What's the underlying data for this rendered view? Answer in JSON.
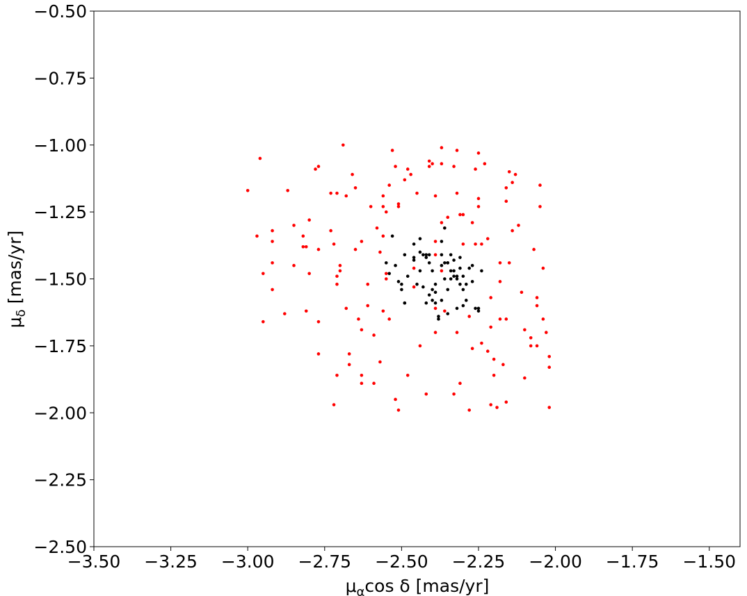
{
  "chart_data": {
    "type": "scatter",
    "xlabel": {
      "symbol": "μ",
      "subscript": "α",
      "rest": "cos δ [mas/yr]"
    },
    "ylabel": {
      "symbol": "μ",
      "subscript": "δ",
      "rest": " [mas/yr]"
    },
    "xlim": [
      -3.5,
      -1.4
    ],
    "ylim": [
      -2.5,
      -0.5
    ],
    "xticks": [
      {
        "value": -3.5,
        "label": "−3.50"
      },
      {
        "value": -3.25,
        "label": "−3.25"
      },
      {
        "value": -3.0,
        "label": "−3.00"
      },
      {
        "value": -2.75,
        "label": "−2.75"
      },
      {
        "value": -2.5,
        "label": "−2.50"
      },
      {
        "value": -2.25,
        "label": "−2.25"
      },
      {
        "value": -2.0,
        "label": "−2.00"
      },
      {
        "value": -1.75,
        "label": "−1.75"
      },
      {
        "value": -1.5,
        "label": "−1.50"
      }
    ],
    "yticks": [
      {
        "value": -2.5,
        "label": "−2.50"
      },
      {
        "value": -2.25,
        "label": "−2.25"
      },
      {
        "value": -2.0,
        "label": "−2.00"
      },
      {
        "value": -1.75,
        "label": "−1.75"
      },
      {
        "value": -1.5,
        "label": "−1.50"
      },
      {
        "value": -1.25,
        "label": "−1.25"
      },
      {
        "value": -1.0,
        "label": "−1.00"
      },
      {
        "value": -0.75,
        "label": "−0.75"
      },
      {
        "value": -0.5,
        "label": "−0.50"
      }
    ],
    "series": [
      {
        "color": "#ff0000",
        "x": [
          -3.0,
          -2.96,
          -2.97,
          -2.95,
          -2.95,
          -2.92,
          -2.92,
          -2.92,
          -2.92,
          -2.88,
          -2.87,
          -2.85,
          -2.85,
          -2.82,
          -2.82,
          -2.81,
          -2.81,
          -2.8,
          -2.8,
          -2.78,
          -2.77,
          -2.77,
          -2.77,
          -2.77,
          -2.73,
          -2.73,
          -2.71,
          -2.72,
          -2.72,
          -2.71,
          -2.71,
          -2.71,
          -2.7,
          -2.7,
          -2.69,
          -2.68,
          -2.68,
          -2.66,
          -2.67,
          -2.67,
          -2.65,
          -2.65,
          -2.64,
          -2.63,
          -2.63,
          -2.63,
          -2.63,
          -2.61,
          -2.61,
          -2.6,
          -2.59,
          -2.58,
          -2.57,
          -2.59,
          -2.57,
          -2.56,
          -2.56,
          -2.56,
          -2.56,
          -2.55,
          -2.55,
          -2.55,
          -2.54,
          -2.54,
          -2.53,
          -2.52,
          -2.52,
          -2.51,
          -2.51,
          -2.51,
          -2.49,
          -2.48,
          -2.48,
          -2.47,
          -2.46,
          -2.46,
          -2.45,
          -2.44,
          -2.42,
          -2.41,
          -2.41,
          -2.4,
          -2.39,
          -2.39,
          -2.39,
          -2.39,
          -2.37,
          -2.39,
          -2.37,
          -2.37,
          -2.37,
          -2.36,
          -2.36,
          -2.35,
          -2.33,
          -2.32,
          -2.33,
          -2.32,
          -2.32,
          -2.31,
          -2.31,
          -2.3,
          -2.3,
          -2.28,
          -2.28,
          -2.27,
          -2.27,
          -2.26,
          -2.26,
          -2.25,
          -2.25,
          -2.25,
          -2.24,
          -2.24,
          -2.23,
          -2.22,
          -2.22,
          -2.21,
          -2.21,
          -2.21,
          -2.2,
          -2.2,
          -2.19,
          -2.18,
          -2.18,
          -2.18,
          -2.17,
          -2.16,
          -2.16,
          -2.16,
          -2.16,
          -2.15,
          -2.15,
          -2.14,
          -2.14,
          -2.13,
          -2.12,
          -2.11,
          -2.1,
          -2.1,
          -2.08,
          -2.08,
          -2.07,
          -2.06,
          -2.06,
          -2.06,
          -2.05,
          -2.05,
          -2.04,
          -2.04,
          -2.03,
          -2.02,
          -2.02,
          -2.02
        ],
        "y": [
          -1.17,
          -1.05,
          -1.34,
          -1.48,
          -1.66,
          -1.32,
          -1.36,
          -1.44,
          -1.54,
          -1.63,
          -1.17,
          -1.3,
          -1.45,
          -1.34,
          -1.38,
          -1.38,
          -1.62,
          -1.28,
          -1.48,
          -1.09,
          -1.39,
          -1.66,
          -1.08,
          -1.78,
          -1.32,
          -1.18,
          -1.18,
          -1.37,
          -1.97,
          -1.86,
          -1.49,
          -1.52,
          -1.47,
          -1.45,
          -1.0,
          -1.19,
          -1.61,
          -1.11,
          -1.78,
          -1.82,
          -1.39,
          -1.16,
          -1.65,
          -1.36,
          -1.69,
          -1.86,
          -1.89,
          -1.52,
          -1.6,
          -1.23,
          -1.71,
          -1.31,
          -1.81,
          -1.89,
          -1.4,
          -1.19,
          -1.23,
          -1.34,
          -1.62,
          -1.5,
          -1.48,
          -1.25,
          -1.65,
          -1.15,
          -1.02,
          -1.08,
          -1.95,
          -1.99,
          -1.22,
          -1.23,
          -1.13,
          -1.86,
          -1.09,
          -1.11,
          -1.53,
          -1.46,
          -1.18,
          -1.75,
          -1.93,
          -1.06,
          -1.08,
          -1.07,
          -1.19,
          -1.41,
          -1.7,
          -1.61,
          -1.01,
          -1.36,
          -1.07,
          -1.29,
          -1.47,
          -1.31,
          -1.62,
          -1.27,
          -1.08,
          -1.18,
          -1.93,
          -1.7,
          -1.02,
          -1.89,
          -1.26,
          -1.37,
          -1.26,
          -1.99,
          -1.64,
          -1.76,
          -1.29,
          -1.09,
          -1.37,
          -1.03,
          -1.2,
          -1.23,
          -1.74,
          -1.37,
          -1.07,
          -1.35,
          -1.77,
          -1.68,
          -1.57,
          -1.97,
          -1.8,
          -1.86,
          -1.98,
          -1.65,
          -1.44,
          -1.51,
          -1.82,
          -1.21,
          -1.96,
          -1.65,
          -1.16,
          -1.1,
          -1.44,
          -1.32,
          -1.14,
          -1.11,
          -1.3,
          -1.55,
          -1.69,
          -1.87,
          -1.72,
          -1.75,
          -1.39,
          -1.57,
          -1.6,
          -1.75,
          -1.15,
          -1.23,
          -1.46,
          -1.65,
          -1.7,
          -1.79,
          -1.83,
          -1.98
        ]
      },
      {
        "color": "#000000",
        "x": [
          -2.55,
          -2.54,
          -2.53,
          -2.52,
          -2.51,
          -2.5,
          -2.5,
          -2.49,
          -2.49,
          -2.49,
          -2.48,
          -2.46,
          -2.46,
          -2.46,
          -2.45,
          -2.44,
          -2.44,
          -2.44,
          -2.43,
          -2.43,
          -2.42,
          -2.42,
          -2.42,
          -2.41,
          -2.41,
          -2.41,
          -2.4,
          -2.4,
          -2.4,
          -2.39,
          -2.39,
          -2.39,
          -2.38,
          -2.38,
          -2.37,
          -2.37,
          -2.37,
          -2.37,
          -2.36,
          -2.36,
          -2.36,
          -2.35,
          -2.35,
          -2.35,
          -2.35,
          -2.34,
          -2.34,
          -2.34,
          -2.33,
          -2.33,
          -2.33,
          -2.32,
          -2.32,
          -2.32,
          -2.31,
          -2.31,
          -2.31,
          -2.3,
          -2.3,
          -2.3,
          -2.29,
          -2.29,
          -2.28,
          -2.27,
          -2.27,
          -2.26,
          -2.25,
          -2.25,
          -2.24
        ],
        "y": [
          -1.44,
          -1.48,
          -1.34,
          -1.45,
          -1.51,
          -1.54,
          -1.52,
          -1.59,
          -1.59,
          -1.41,
          -1.49,
          -1.37,
          -1.42,
          -1.43,
          -1.52,
          -1.4,
          -1.35,
          -1.47,
          -1.41,
          -1.53,
          -1.42,
          -1.59,
          -1.41,
          -1.41,
          -1.44,
          -1.56,
          -1.47,
          -1.54,
          -1.58,
          -1.59,
          -1.55,
          -1.52,
          -1.65,
          -1.64,
          -1.41,
          -1.58,
          -1.45,
          -1.36,
          -1.31,
          -1.5,
          -1.44,
          -1.44,
          -1.44,
          -1.54,
          -1.63,
          -1.41,
          -1.47,
          -1.5,
          -1.49,
          -1.47,
          -1.43,
          -1.49,
          -1.5,
          -1.61,
          -1.42,
          -1.52,
          -1.46,
          -1.54,
          -1.49,
          -1.6,
          -1.52,
          -1.58,
          -1.46,
          -1.45,
          -1.51,
          -1.61,
          -1.61,
          -1.62,
          -1.47
        ]
      }
    ]
  }
}
